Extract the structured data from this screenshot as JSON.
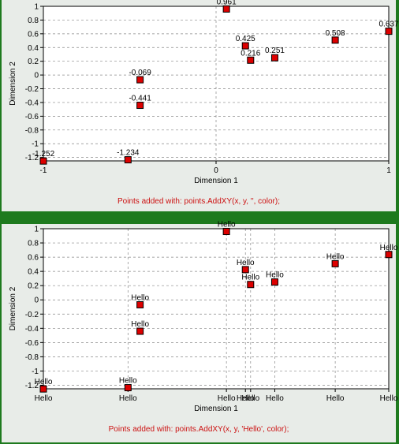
{
  "chart_data": [
    {
      "type": "scatter",
      "xlabel": "Dimension 1",
      "ylabel": "Dimension 2",
      "xlim": [
        -1,
        1
      ],
      "ylim": [
        -1.25,
        1
      ],
      "x_ticks": [
        "-1",
        "0",
        "1"
      ],
      "y_ticks": [
        "1",
        "0.8",
        "0.6",
        "0.4",
        "0.2",
        "0",
        "-0.2",
        "-0.4",
        "-0.6",
        "-0.8",
        "-1",
        "-1.2"
      ],
      "grid": true,
      "marker_color": "#dd0000",
      "caption": "Points added with:  points.AddXY(x, y, '', color);",
      "points": [
        {
          "x": -1.0,
          "y": -1.252,
          "label": "-1.252"
        },
        {
          "x": -0.51,
          "y": -1.234,
          "label": "-1.234"
        },
        {
          "x": -0.44,
          "y": -0.069,
          "label": "-0.069"
        },
        {
          "x": -0.44,
          "y": -0.441,
          "label": "-0.441"
        },
        {
          "x": 0.06,
          "y": 0.961,
          "label": "0.961"
        },
        {
          "x": 0.17,
          "y": 0.425,
          "label": "0.425"
        },
        {
          "x": 0.2,
          "y": 0.216,
          "label": "0.216"
        },
        {
          "x": 0.34,
          "y": 0.251,
          "label": "0.251"
        },
        {
          "x": 0.69,
          "y": 0.508,
          "label": "0.508"
        },
        {
          "x": 1.0,
          "y": 0.637,
          "label": "0.637"
        }
      ]
    },
    {
      "type": "scatter",
      "xlabel": "Dimension 1",
      "ylabel": "Dimension 2",
      "xlim": [
        -1,
        1
      ],
      "ylim": [
        -1.25,
        1
      ],
      "x_ticks": [
        "Hello",
        "Hello",
        "Hello",
        "Hello",
        "Hello",
        "Hello",
        "Hello",
        "Hello"
      ],
      "x_tick_values": [
        -1.0,
        -0.51,
        0.06,
        0.17,
        0.2,
        0.34,
        0.69,
        1.0
      ],
      "y_ticks": [
        "1",
        "0.8",
        "0.6",
        "0.4",
        "0.2",
        "0",
        "-0.2",
        "-0.4",
        "-0.6",
        "-0.8",
        "-1",
        "-1.2"
      ],
      "grid": true,
      "marker_color": "#dd0000",
      "caption": "Points added with:  points.AddXY(x, y, 'Hello', color);",
      "points": [
        {
          "x": -1.0,
          "y": -1.252,
          "label": "Hello"
        },
        {
          "x": -0.51,
          "y": -1.234,
          "label": "Hello"
        },
        {
          "x": -0.44,
          "y": -0.069,
          "label": "Hello"
        },
        {
          "x": -0.44,
          "y": -0.441,
          "label": "Hello"
        },
        {
          "x": 0.06,
          "y": 0.961,
          "label": "Hello"
        },
        {
          "x": 0.17,
          "y": 0.425,
          "label": "Hello"
        },
        {
          "x": 0.2,
          "y": 0.216,
          "label": "Hello"
        },
        {
          "x": 0.34,
          "y": 0.251,
          "label": "Hello"
        },
        {
          "x": 0.69,
          "y": 0.508,
          "label": "Hello"
        },
        {
          "x": 1.0,
          "y": 0.637,
          "label": "Hello"
        }
      ]
    }
  ]
}
